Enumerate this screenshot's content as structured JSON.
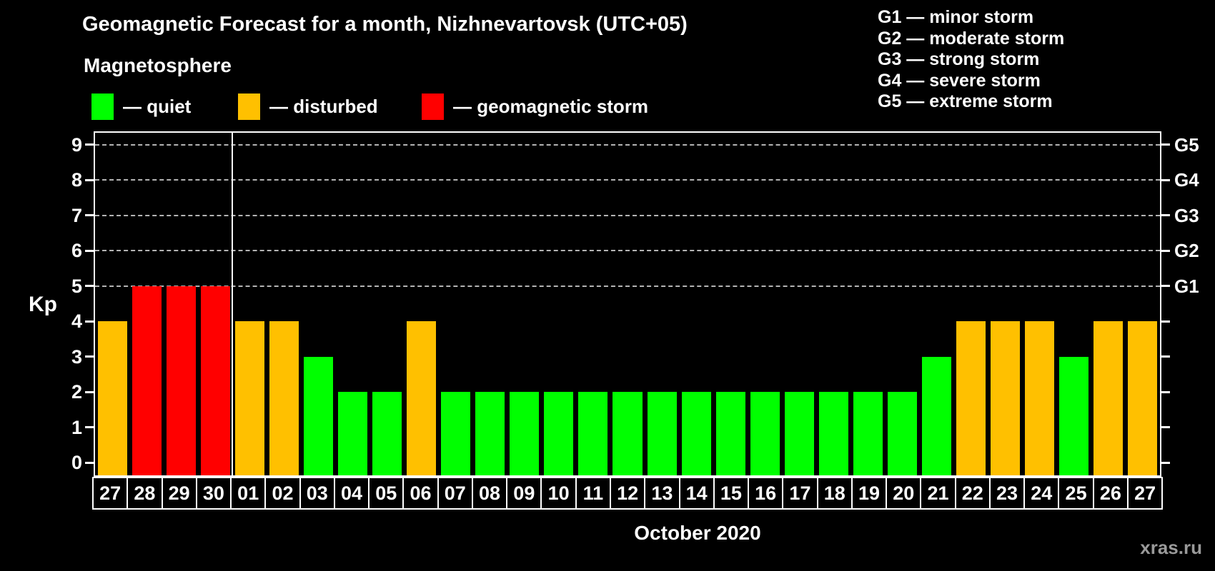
{
  "header": {
    "title": "Geomagnetic Forecast for a month, Nizhnevartovsk (UTC+05)",
    "subtitle": "Magnetosphere"
  },
  "legend": {
    "items": [
      {
        "key": "quiet",
        "label": "— quiet",
        "color": "#00ff00"
      },
      {
        "key": "disturbed",
        "label": "— disturbed",
        "color": "#ffc000"
      },
      {
        "key": "storm",
        "label": "— geomagnetic storm",
        "color": "#ff0000"
      }
    ]
  },
  "g_legend": [
    "G1 — minor storm",
    "G2 — moderate storm",
    "G3 — strong storm",
    "G4 — severe storm",
    "G5 — extreme storm"
  ],
  "axis": {
    "y_label": "Kp",
    "y_ticks": [
      0,
      1,
      2,
      3,
      4,
      5,
      6,
      7,
      8,
      9
    ],
    "right_labels": [
      {
        "label": "G1",
        "kp": 5
      },
      {
        "label": "G2",
        "kp": 6
      },
      {
        "label": "G3",
        "kp": 7
      },
      {
        "label": "G4",
        "kp": 8
      },
      {
        "label": "G5",
        "kp": 9
      }
    ],
    "x_label": "October 2020"
  },
  "watermark": "xras.ru",
  "chart_data": {
    "type": "bar",
    "title": "Geomagnetic Forecast for a month, Nizhnevartovsk (UTC+05)",
    "xlabel": "October 2020",
    "ylabel": "Kp",
    "ylim": [
      0,
      9
    ],
    "gridlines_at": [
      5,
      6,
      7,
      8,
      9
    ],
    "month_separator_after_index": 3,
    "categories": [
      "27",
      "28",
      "29",
      "30",
      "01",
      "02",
      "03",
      "04",
      "05",
      "06",
      "07",
      "08",
      "09",
      "10",
      "11",
      "12",
      "13",
      "14",
      "15",
      "16",
      "17",
      "18",
      "19",
      "20",
      "21",
      "22",
      "23",
      "24",
      "25",
      "26",
      "27"
    ],
    "values": [
      4,
      5,
      5,
      5,
      4,
      4,
      3,
      2,
      2,
      4,
      2,
      2,
      2,
      2,
      2,
      2,
      2,
      2,
      2,
      2,
      2,
      2,
      2,
      2,
      3,
      4,
      4,
      4,
      3,
      4,
      4
    ],
    "statuses": [
      "disturbed",
      "storm",
      "storm",
      "storm",
      "disturbed",
      "disturbed",
      "quiet",
      "quiet",
      "quiet",
      "disturbed",
      "quiet",
      "quiet",
      "quiet",
      "quiet",
      "quiet",
      "quiet",
      "quiet",
      "quiet",
      "quiet",
      "quiet",
      "quiet",
      "quiet",
      "quiet",
      "quiet",
      "quiet",
      "disturbed",
      "disturbed",
      "disturbed",
      "quiet",
      "disturbed",
      "disturbed"
    ],
    "status_colors": {
      "quiet": "#00ff00",
      "disturbed": "#ffc000",
      "storm": "#ff0000"
    }
  }
}
